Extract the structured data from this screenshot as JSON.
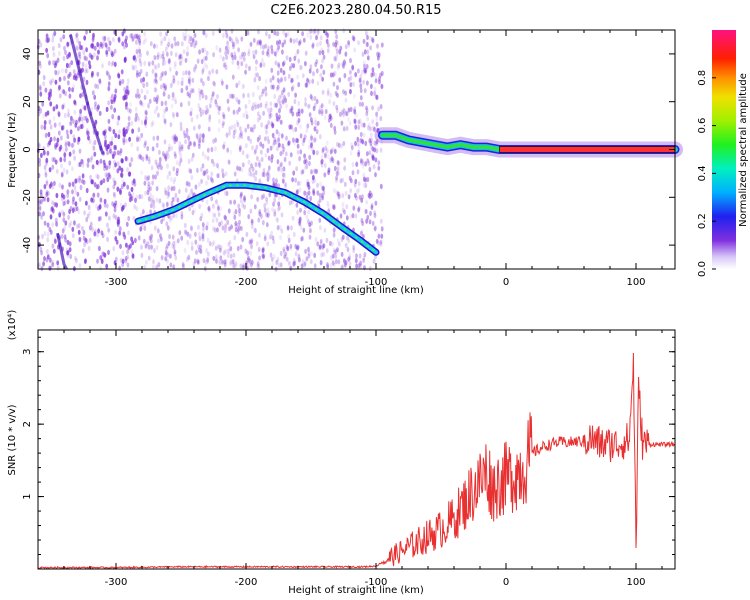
{
  "title": "C2E6.2023.280.04.50.R15",
  "colors": {
    "snr_line": "#e83030",
    "dots": "#7a2bd6",
    "frame": "#000000"
  },
  "chart_data": [
    {
      "type": "heatmap",
      "xlabel": "Height of straight line (km)",
      "ylabel": "Frequency (Hz)",
      "xlim": [
        -360,
        130
      ],
      "ylim": [
        -50,
        50
      ],
      "xticks": [
        "-300",
        "-200",
        "-100",
        "0",
        "100"
      ],
      "xtick_values": [
        -300,
        -200,
        -100,
        0,
        100
      ],
      "yticks": [
        "40",
        "20",
        "0",
        "-20",
        "-40"
      ],
      "ytick_values": [
        40,
        20,
        0,
        -20,
        -40
      ],
      "colorbar": {
        "label": "Normalized spectral amplitude",
        "range": [
          0,
          1
        ],
        "ticks": [
          "0.0",
          "0.2",
          "0.4",
          "0.6",
          "0.8"
        ],
        "tick_values": [
          0.0,
          0.2,
          0.4,
          0.6,
          0.8
        ]
      },
      "features": [
        {
          "name": "doppler_arc",
          "points": [
            [
              -283,
              -30
            ],
            [
              -270,
              -28
            ],
            [
              -255,
              -25
            ],
            [
              -240,
              -21
            ],
            [
              -228,
              -18
            ],
            [
              -215,
              -15
            ],
            [
              -200,
              -15
            ],
            [
              -185,
              -16
            ],
            [
              -170,
              -18
            ],
            [
              -155,
              -22
            ],
            [
              -140,
              -27
            ],
            [
              -125,
              -33
            ],
            [
              -112,
              -38
            ],
            [
              -100,
              -43
            ]
          ]
        },
        {
          "name": "carrier_band",
          "points": [
            [
              -95,
              6
            ],
            [
              -85,
              6
            ],
            [
              -75,
              4
            ],
            [
              -65,
              3
            ],
            [
              -55,
              2
            ],
            [
              -45,
              1
            ],
            [
              -35,
              2
            ],
            [
              -25,
              1
            ],
            [
              -15,
              1
            ],
            [
              -5,
              0
            ],
            [
              10,
              0
            ],
            [
              40,
              0
            ],
            [
              70,
              0
            ],
            [
              95,
              0
            ],
            [
              130,
              0
            ]
          ]
        }
      ]
    },
    {
      "type": "line",
      "xlabel": "Height of straight line (km)",
      "ylabel": "SNR (10 * v/v)",
      "y_multiplier": "(x10⁴)",
      "xlim": [
        -360,
        130
      ],
      "ylim": [
        0,
        3.3
      ],
      "xticks": [
        "-300",
        "-200",
        "-100",
        "0",
        "100"
      ],
      "xtick_values": [
        -300,
        -200,
        -100,
        0,
        100
      ],
      "yticks": [
        "3",
        "2",
        "1"
      ],
      "ytick_values": [
        3,
        2,
        1
      ],
      "series": [
        {
          "x": [
            -360,
            -300,
            -250,
            -200,
            -150,
            -110,
            -100,
            -90,
            -80,
            -70,
            -60,
            -50,
            -40,
            -30,
            -25,
            -20,
            -15,
            -10,
            -5,
            0,
            5,
            10,
            15,
            20,
            30,
            40,
            50,
            60,
            65,
            70,
            75,
            80,
            85,
            90,
            95,
            98,
            100,
            102,
            105,
            110,
            120,
            130
          ],
          "y": [
            0.02,
            0.02,
            0.03,
            0.03,
            0.03,
            0.03,
            0.04,
            0.15,
            0.25,
            0.35,
            0.45,
            0.55,
            0.7,
            0.95,
            1.1,
            1.2,
            1.35,
            1.1,
            1.2,
            1.25,
            1.3,
            1.35,
            1.45,
            1.6,
            1.7,
            1.75,
            1.75,
            1.77,
            1.8,
            1.75,
            1.72,
            1.72,
            1.72,
            1.75,
            1.8,
            2.9,
            0.3,
            2.5,
            1.75,
            1.72,
            1.72,
            1.72
          ]
        }
      ]
    }
  ]
}
